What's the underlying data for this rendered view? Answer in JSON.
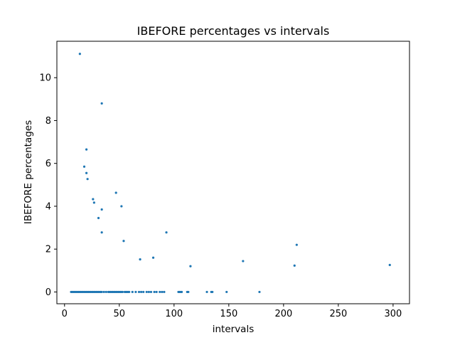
{
  "chart_data": {
    "type": "scatter",
    "title": "IBEFORE percentages vs intervals",
    "xlabel": "intervals",
    "ylabel": "IBEFORE percentages",
    "xlim": [
      -7,
      315
    ],
    "ylim": [
      -0.55,
      11.7
    ],
    "xticks": [
      0,
      50,
      100,
      150,
      200,
      250,
      300
    ],
    "yticks": [
      0,
      2,
      4,
      6,
      8,
      10
    ],
    "grid": false,
    "legend": "none",
    "marker_color": "#1f77b4",
    "series": [
      {
        "points": [
          [
            14,
            11.11
          ],
          [
            34,
            8.8
          ],
          [
            20,
            6.65
          ],
          [
            18,
            5.85
          ],
          [
            20,
            5.55
          ],
          [
            21,
            5.27
          ],
          [
            47,
            4.63
          ],
          [
            26,
            4.33
          ],
          [
            27,
            4.17
          ],
          [
            52,
            4.0
          ],
          [
            34,
            3.85
          ],
          [
            31,
            3.45
          ],
          [
            34,
            2.78
          ],
          [
            93,
            2.78
          ],
          [
            54,
            2.38
          ],
          [
            212,
            2.2
          ],
          [
            81,
            1.6
          ],
          [
            69,
            1.52
          ],
          [
            163,
            1.44
          ],
          [
            297,
            1.26
          ],
          [
            210,
            1.23
          ],
          [
            115,
            1.2
          ],
          [
            6,
            0
          ],
          [
            7,
            0
          ],
          [
            8,
            0
          ],
          [
            9,
            0
          ],
          [
            10,
            0
          ],
          [
            11,
            0
          ],
          [
            12,
            0
          ],
          [
            13,
            0
          ],
          [
            14,
            0
          ],
          [
            15,
            0
          ],
          [
            16,
            0
          ],
          [
            17,
            0
          ],
          [
            18,
            0
          ],
          [
            19,
            0
          ],
          [
            20,
            0
          ],
          [
            21,
            0
          ],
          [
            22,
            0
          ],
          [
            23,
            0
          ],
          [
            24,
            0
          ],
          [
            25,
            0
          ],
          [
            26,
            0
          ],
          [
            27,
            0
          ],
          [
            28,
            0
          ],
          [
            29,
            0
          ],
          [
            30,
            0
          ],
          [
            31,
            0
          ],
          [
            32,
            0
          ],
          [
            33,
            0
          ],
          [
            34,
            0
          ],
          [
            36,
            0
          ],
          [
            38,
            0
          ],
          [
            40,
            0
          ],
          [
            41,
            0
          ],
          [
            42,
            0
          ],
          [
            43,
            0
          ],
          [
            44,
            0
          ],
          [
            45,
            0
          ],
          [
            46,
            0
          ],
          [
            47,
            0
          ],
          [
            48,
            0
          ],
          [
            49,
            0
          ],
          [
            50,
            0
          ],
          [
            51,
            0
          ],
          [
            52,
            0
          ],
          [
            53,
            0
          ],
          [
            55,
            0
          ],
          [
            56,
            0
          ],
          [
            57,
            0
          ],
          [
            58,
            0
          ],
          [
            59,
            0
          ],
          [
            62,
            0
          ],
          [
            65,
            0
          ],
          [
            68,
            0
          ],
          [
            70,
            0
          ],
          [
            72,
            0
          ],
          [
            75,
            0
          ],
          [
            77,
            0
          ],
          [
            79,
            0
          ],
          [
            82,
            0
          ],
          [
            84,
            0
          ],
          [
            87,
            0
          ],
          [
            89,
            0
          ],
          [
            91,
            0
          ],
          [
            104,
            0
          ],
          [
            105,
            0
          ],
          [
            106,
            0
          ],
          [
            107,
            0
          ],
          [
            112,
            0
          ],
          [
            113,
            0
          ],
          [
            130,
            0
          ],
          [
            134,
            0
          ],
          [
            135,
            0
          ],
          [
            148,
            0
          ],
          [
            178,
            0
          ]
        ]
      }
    ]
  }
}
